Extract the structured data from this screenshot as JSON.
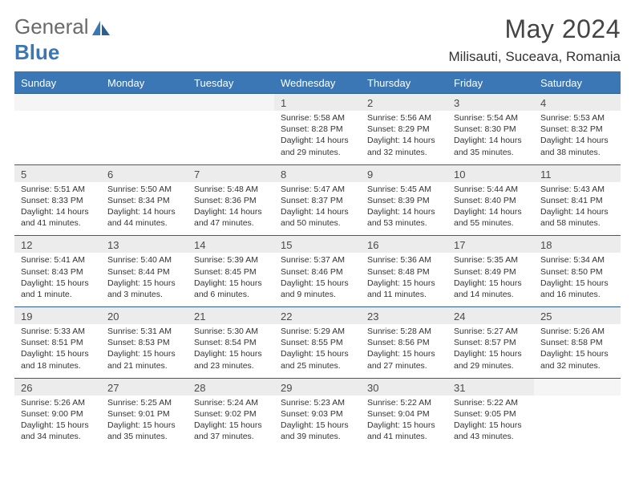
{
  "brand": {
    "part1": "General",
    "part2": "Blue"
  },
  "header": {
    "month_title": "May 2024",
    "location": "Milisauti, Suceava, Romania"
  },
  "colors": {
    "header_bar": "#3b76b5",
    "header_text": "#ffffff",
    "daynum_bg": "#ececec",
    "daynum_text": "#4a4a4a",
    "rule": "#2f5d92",
    "body_text": "#333333",
    "title_text": "#444444",
    "brand_gray": "#6a6a6a",
    "brand_blue": "#3b76b5"
  },
  "layout": {
    "columns": 7,
    "rows": 5,
    "cell_font_size_pt": 8,
    "title_font_size_pt": 24
  },
  "dow": [
    "Sunday",
    "Monday",
    "Tuesday",
    "Wednesday",
    "Thursday",
    "Friday",
    "Saturday"
  ],
  "weeks": [
    [
      null,
      null,
      null,
      {
        "n": "1",
        "sunrise": "5:58 AM",
        "sunset": "8:28 PM",
        "daylight": "14 hours and 29 minutes."
      },
      {
        "n": "2",
        "sunrise": "5:56 AM",
        "sunset": "8:29 PM",
        "daylight": "14 hours and 32 minutes."
      },
      {
        "n": "3",
        "sunrise": "5:54 AM",
        "sunset": "8:30 PM",
        "daylight": "14 hours and 35 minutes."
      },
      {
        "n": "4",
        "sunrise": "5:53 AM",
        "sunset": "8:32 PM",
        "daylight": "14 hours and 38 minutes."
      }
    ],
    [
      {
        "n": "5",
        "sunrise": "5:51 AM",
        "sunset": "8:33 PM",
        "daylight": "14 hours and 41 minutes."
      },
      {
        "n": "6",
        "sunrise": "5:50 AM",
        "sunset": "8:34 PM",
        "daylight": "14 hours and 44 minutes."
      },
      {
        "n": "7",
        "sunrise": "5:48 AM",
        "sunset": "8:36 PM",
        "daylight": "14 hours and 47 minutes."
      },
      {
        "n": "8",
        "sunrise": "5:47 AM",
        "sunset": "8:37 PM",
        "daylight": "14 hours and 50 minutes."
      },
      {
        "n": "9",
        "sunrise": "5:45 AM",
        "sunset": "8:39 PM",
        "daylight": "14 hours and 53 minutes."
      },
      {
        "n": "10",
        "sunrise": "5:44 AM",
        "sunset": "8:40 PM",
        "daylight": "14 hours and 55 minutes."
      },
      {
        "n": "11",
        "sunrise": "5:43 AM",
        "sunset": "8:41 PM",
        "daylight": "14 hours and 58 minutes."
      }
    ],
    [
      {
        "n": "12",
        "sunrise": "5:41 AM",
        "sunset": "8:43 PM",
        "daylight": "15 hours and 1 minute."
      },
      {
        "n": "13",
        "sunrise": "5:40 AM",
        "sunset": "8:44 PM",
        "daylight": "15 hours and 3 minutes."
      },
      {
        "n": "14",
        "sunrise": "5:39 AM",
        "sunset": "8:45 PM",
        "daylight": "15 hours and 6 minutes."
      },
      {
        "n": "15",
        "sunrise": "5:37 AM",
        "sunset": "8:46 PM",
        "daylight": "15 hours and 9 minutes."
      },
      {
        "n": "16",
        "sunrise": "5:36 AM",
        "sunset": "8:48 PM",
        "daylight": "15 hours and 11 minutes."
      },
      {
        "n": "17",
        "sunrise": "5:35 AM",
        "sunset": "8:49 PM",
        "daylight": "15 hours and 14 minutes."
      },
      {
        "n": "18",
        "sunrise": "5:34 AM",
        "sunset": "8:50 PM",
        "daylight": "15 hours and 16 minutes."
      }
    ],
    [
      {
        "n": "19",
        "sunrise": "5:33 AM",
        "sunset": "8:51 PM",
        "daylight": "15 hours and 18 minutes."
      },
      {
        "n": "20",
        "sunrise": "5:31 AM",
        "sunset": "8:53 PM",
        "daylight": "15 hours and 21 minutes."
      },
      {
        "n": "21",
        "sunrise": "5:30 AM",
        "sunset": "8:54 PM",
        "daylight": "15 hours and 23 minutes."
      },
      {
        "n": "22",
        "sunrise": "5:29 AM",
        "sunset": "8:55 PM",
        "daylight": "15 hours and 25 minutes."
      },
      {
        "n": "23",
        "sunrise": "5:28 AM",
        "sunset": "8:56 PM",
        "daylight": "15 hours and 27 minutes."
      },
      {
        "n": "24",
        "sunrise": "5:27 AM",
        "sunset": "8:57 PM",
        "daylight": "15 hours and 29 minutes."
      },
      {
        "n": "25",
        "sunrise": "5:26 AM",
        "sunset": "8:58 PM",
        "daylight": "15 hours and 32 minutes."
      }
    ],
    [
      {
        "n": "26",
        "sunrise": "5:26 AM",
        "sunset": "9:00 PM",
        "daylight": "15 hours and 34 minutes."
      },
      {
        "n": "27",
        "sunrise": "5:25 AM",
        "sunset": "9:01 PM",
        "daylight": "15 hours and 35 minutes."
      },
      {
        "n": "28",
        "sunrise": "5:24 AM",
        "sunset": "9:02 PM",
        "daylight": "15 hours and 37 minutes."
      },
      {
        "n": "29",
        "sunrise": "5:23 AM",
        "sunset": "9:03 PM",
        "daylight": "15 hours and 39 minutes."
      },
      {
        "n": "30",
        "sunrise": "5:22 AM",
        "sunset": "9:04 PM",
        "daylight": "15 hours and 41 minutes."
      },
      {
        "n": "31",
        "sunrise": "5:22 AM",
        "sunset": "9:05 PM",
        "daylight": "15 hours and 43 minutes."
      },
      null
    ]
  ],
  "labels": {
    "sunrise": "Sunrise: ",
    "sunset": "Sunset: ",
    "daylight": "Daylight: "
  }
}
